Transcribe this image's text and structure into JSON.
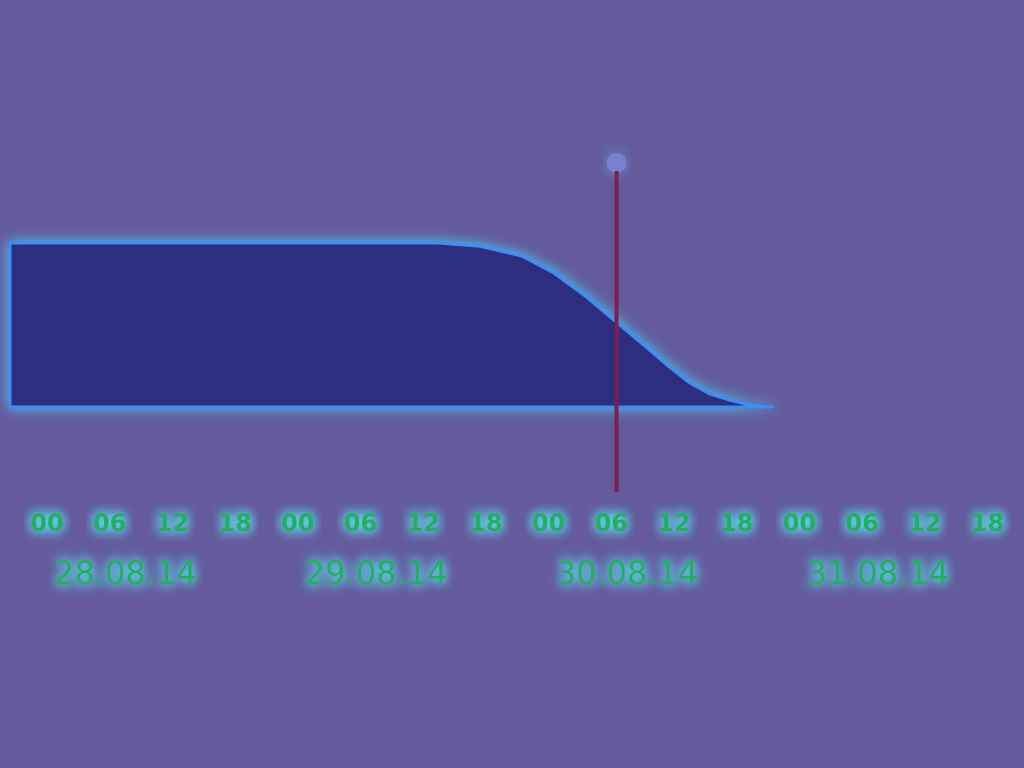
{
  "chart_data": {
    "type": "area",
    "title": "",
    "xlabel": "",
    "ylabel": "",
    "grid": false,
    "x_unit": "hours",
    "x_range": [
      -1,
      95.5
    ],
    "y_range": [
      0,
      1
    ],
    "hour_labels": [
      "00",
      "06",
      "12",
      "18",
      "00",
      "06",
      "12",
      "18",
      "00",
      "06",
      "12",
      "18",
      "00",
      "06",
      "12",
      "18"
    ],
    "day_labels": [
      "28.08.14",
      "29.08.14",
      "30.08.14",
      "31.08.14"
    ],
    "series": [
      {
        "x": [
          -1,
          36,
          40,
          44,
          48,
          51,
          54,
          57,
          60,
          62,
          64,
          66,
          68,
          70,
          72
        ],
        "y": [
          1.0,
          1.0,
          1.0,
          0.98,
          0.92,
          0.82,
          0.68,
          0.52,
          0.36,
          0.25,
          0.15,
          0.08,
          0.04,
          0.01,
          0.0
        ]
      }
    ],
    "marker_x": 54.5,
    "colors": {
      "background": "#645a9c",
      "area_fill": "#2e2e80",
      "area_edge": "#3a8ff2",
      "glow": "#46d8ff",
      "axis": "#2c7fb0",
      "label": "#20b060",
      "marker": "#7a1f4e"
    }
  }
}
